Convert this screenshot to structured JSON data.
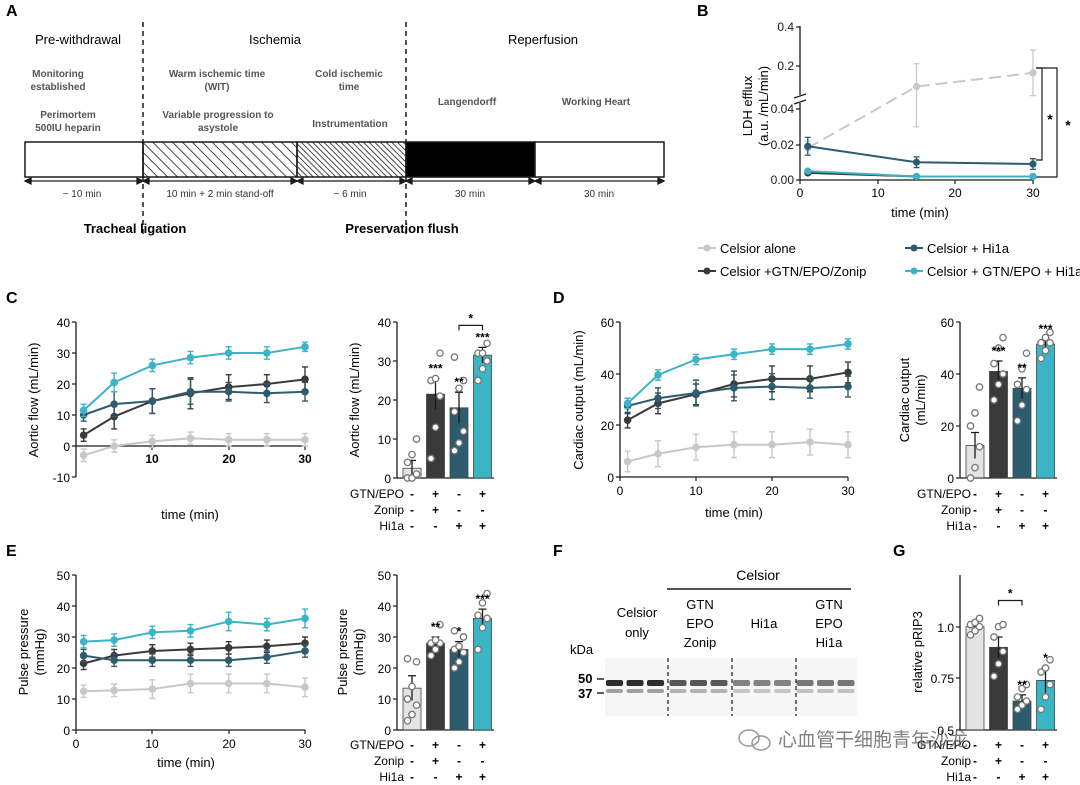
{
  "colors": {
    "celsior_alone": "#c8c8c8",
    "gtn_epo_zonip": "#3a3a3a",
    "hi1a": "#2e5b6e",
    "gtn_epo_hi1a": "#3bb5c6",
    "text": "#1a1a1a"
  },
  "panel_labels": {
    "a": "A",
    "b": "B",
    "c": "C",
    "d": "D",
    "e": "E",
    "f": "F",
    "g": "G"
  },
  "panel_a": {
    "phases": [
      "Pre-withdrawal",
      "Ischemia",
      "Reperfusion"
    ],
    "steps": {
      "monitoring": [
        "Monitoring",
        "established"
      ],
      "heparin": [
        "Perimortem",
        "500IU heparin"
      ],
      "wit": [
        "Warm ischemic time",
        "(WIT)"
      ],
      "asystole": [
        "Variable progression to",
        "asystole"
      ],
      "cold": [
        "Cold ischemic",
        "time"
      ],
      "instrumentation": "Instrumentation",
      "langendorff": "Langendorff",
      "working_heart": "Working Heart"
    },
    "durations": [
      "~ 10 min",
      "10 min + 2 min stand-off",
      "~ 6 min",
      "30 min",
      "30 min"
    ],
    "events": [
      "Tracheal ligation",
      "Preservation flush"
    ]
  },
  "legend": [
    {
      "label": "Celsior alone",
      "color_key": "celsior_alone"
    },
    {
      "label": "Celsior + Hi1a",
      "color_key": "hi1a"
    },
    {
      "label": "Celsior +GTN/EPO/Zonip",
      "color_key": "gtn_epo_zonip"
    },
    {
      "label": "Celsior + GTN/EPO + Hi1a",
      "color_key": "gtn_epo_hi1a"
    }
  ],
  "treatment_rows": {
    "labels": [
      "GTN/EPO",
      "Zonip",
      "Hi1a"
    ],
    "signs": [
      [
        "-",
        "+",
        "-",
        "+"
      ],
      [
        "-",
        "+",
        "-",
        "-"
      ],
      [
        "-",
        "-",
        "+",
        "+"
      ]
    ]
  },
  "chart_data": [
    {
      "id": "B",
      "type": "line",
      "ylabel": [
        "LDH efflux",
        "(a.u. /mL/min)"
      ],
      "xlabel": "time (min)",
      "xlim": [
        0,
        30
      ],
      "xticks": [
        0,
        10,
        20,
        30
      ],
      "ylim_lower": [
        0,
        0.04
      ],
      "ylim_upper": [
        0.04,
        0.4
      ],
      "yticks_lower": [
        "0.00",
        "0.02",
        "0.04"
      ],
      "yticks_upper": [
        "0.2",
        "0.4"
      ],
      "x": [
        1,
        15,
        30
      ],
      "series": [
        {
          "name": "Celsior alone",
          "color_key": "celsior_alone",
          "values": [
            0.018,
            0.13,
            0.19
          ],
          "err": [
            0.004,
            0.1,
            0.1
          ]
        },
        {
          "name": "Celsior + Hi1a",
          "color_key": "hi1a",
          "values": [
            0.019,
            0.01,
            0.009
          ],
          "err": [
            0.005,
            0.003,
            0.003
          ]
        },
        {
          "name": "Celsior +GTN/EPO/Zonip",
          "color_key": "gtn_epo_zonip",
          "values": [
            0.004,
            0.002,
            0.002
          ],
          "err": [
            0.001,
            0.001,
            0.001
          ]
        },
        {
          "name": "Celsior + GTN/EPO + Hi1a",
          "color_key": "gtn_epo_hi1a",
          "values": [
            0.005,
            0.002,
            0.002
          ],
          "err": [
            0.001,
            0.001,
            0.001
          ]
        }
      ],
      "annotations": [
        "*",
        "*"
      ]
    },
    {
      "id": "C_line",
      "type": "line",
      "ylabel": "Aortic flow (mL/min)",
      "xlabel": "time (min)",
      "xlim": [
        0,
        30
      ],
      "ylim": [
        -10,
        40
      ],
      "xticks": [
        10,
        20,
        30
      ],
      "yticks": [
        -10,
        0,
        10,
        20,
        30,
        40
      ],
      "x": [
        1,
        5,
        10,
        15,
        20,
        25,
        30
      ],
      "series": [
        {
          "name": "Celsior alone",
          "color_key": "celsior_alone",
          "values": [
            -3,
            0,
            1.5,
            2.5,
            2,
            2,
            2
          ],
          "err": [
            2,
            2,
            2,
            2,
            2,
            2,
            2
          ]
        },
        {
          "name": "Celsior +GTN/EPO/Zonip",
          "color_key": "gtn_epo_zonip",
          "values": [
            3.5,
            9.5,
            14.5,
            17,
            19,
            20,
            21.5
          ],
          "err": [
            2,
            4,
            4,
            5,
            4,
            3,
            4
          ]
        },
        {
          "name": "Celsior + Hi1a",
          "color_key": "hi1a",
          "values": [
            10,
            13.5,
            14.5,
            17.5,
            17.5,
            17,
            17.5
          ],
          "err": [
            2,
            4,
            4,
            4,
            3,
            3,
            3
          ]
        },
        {
          "name": "Celsior + GTN/EPO + Hi1a",
          "color_key": "gtn_epo_hi1a",
          "values": [
            11.5,
            20.5,
            26,
            28.5,
            30,
            30,
            32
          ],
          "err": [
            2,
            3,
            2,
            2,
            2,
            2,
            1.5
          ]
        }
      ]
    },
    {
      "id": "C_bar",
      "type": "bar",
      "ylabel": "Aortic flow (mL/min)",
      "ylim": [
        0,
        40
      ],
      "yticks": [
        0,
        10,
        20,
        30,
        40
      ],
      "values": [
        2.5,
        21.5,
        18,
        31.5
      ],
      "err": [
        2,
        4,
        4,
        2
      ],
      "points": [
        [
          0,
          0,
          1,
          4,
          6,
          10
        ],
        [
          5,
          13,
          21,
          25,
          25.5,
          32
        ],
        [
          7,
          9,
          12,
          17,
          23,
          25,
          31
        ],
        [
          25,
          28,
          30,
          32,
          32,
          34.5
        ]
      ],
      "sig": [
        "",
        "***",
        "**",
        "***"
      ],
      "bracket": {
        "from": 2,
        "to": 3,
        "label": "*"
      }
    },
    {
      "id": "D_line",
      "type": "line",
      "ylabel": "Cardiac output (mL/min)",
      "xlabel": "time (min)",
      "xlim": [
        0,
        30
      ],
      "ylim": [
        0,
        60
      ],
      "xticks": [
        0,
        10,
        20,
        30
      ],
      "yticks": [
        0,
        20,
        40,
        60
      ],
      "x": [
        1,
        5,
        10,
        15,
        20,
        25,
        30
      ],
      "series": [
        {
          "name": "Celsior alone",
          "color_key": "celsior_alone",
          "values": [
            6,
            9,
            11.5,
            12.5,
            12.5,
            13.5,
            12.5
          ],
          "err": [
            4,
            5,
            5,
            5,
            5,
            5,
            5
          ]
        },
        {
          "name": "Celsior +GTN/EPO/Zonip",
          "color_key": "gtn_epo_zonip",
          "values": [
            22,
            28.5,
            32,
            36,
            38,
            38,
            40.5
          ],
          "err": [
            3,
            4,
            4,
            5,
            5,
            5,
            4
          ]
        },
        {
          "name": "Celsior + Hi1a",
          "color_key": "hi1a",
          "values": [
            27.5,
            30.5,
            32.5,
            34.5,
            35,
            34.5,
            35
          ],
          "err": [
            3,
            4,
            5,
            5,
            5,
            4,
            4
          ]
        },
        {
          "name": "Celsior + GTN/EPO + Hi1a",
          "color_key": "gtn_epo_hi1a",
          "values": [
            28.5,
            39.5,
            45.5,
            47.5,
            49.5,
            49.5,
            51.5
          ],
          "err": [
            2,
            2,
            2,
            2,
            2,
            2,
            2
          ]
        }
      ]
    },
    {
      "id": "D_bar",
      "type": "bar",
      "ylabel": [
        "Cardiac output",
        "(mL/min)"
      ],
      "ylim": [
        0,
        60
      ],
      "yticks": [
        0,
        20,
        40,
        60
      ],
      "values": [
        12.5,
        41,
        34.5,
        51.5
      ],
      "err": [
        5,
        4,
        4,
        2
      ],
      "points": [
        [
          0,
          4,
          12,
          20,
          25,
          35
        ],
        [
          30,
          36,
          40,
          44,
          50,
          54
        ],
        [
          22,
          28,
          34,
          36,
          42,
          48
        ],
        [
          46,
          49,
          52,
          52,
          54,
          56
        ]
      ],
      "sig": [
        "",
        "***",
        "**",
        "***"
      ]
    },
    {
      "id": "E_line",
      "type": "line",
      "ylabel": [
        "Pulse pressure",
        "(mmHg)"
      ],
      "xlabel": "time (min)",
      "xlim": [
        0,
        30
      ],
      "ylim": [
        0,
        50
      ],
      "xticks": [
        0,
        10,
        20,
        30
      ],
      "yticks": [
        0,
        10,
        20,
        30,
        40,
        50
      ],
      "x": [
        1,
        5,
        10,
        15,
        20,
        25,
        30
      ],
      "series": [
        {
          "name": "Celsior alone",
          "color_key": "celsior_alone",
          "values": [
            12.5,
            12.8,
            13.2,
            15,
            15,
            15,
            13.8
          ],
          "err": [
            2,
            2,
            3,
            3,
            3,
            3,
            3
          ]
        },
        {
          "name": "Celsior +GTN/EPO/Zonip",
          "color_key": "gtn_epo_zonip",
          "values": [
            21.5,
            24,
            25.5,
            26,
            26.5,
            27,
            28
          ],
          "err": [
            2,
            2,
            2,
            2,
            2,
            2,
            2
          ]
        },
        {
          "name": "Celsior + Hi1a",
          "color_key": "hi1a",
          "values": [
            24,
            22.5,
            22.5,
            22.5,
            22.5,
            23.5,
            25.5
          ],
          "err": [
            2,
            2,
            2,
            2,
            2,
            2,
            2
          ]
        },
        {
          "name": "Celsior + GTN/EPO + Hi1a",
          "color_key": "gtn_epo_hi1a",
          "values": [
            28.5,
            29,
            31.5,
            32,
            35,
            34,
            36
          ],
          "err": [
            2,
            2,
            2,
            2,
            3,
            2,
            3
          ]
        }
      ]
    },
    {
      "id": "E_bar",
      "type": "bar",
      "ylabel": [
        "Pulse pressure",
        "(mmHg)"
      ],
      "ylim": [
        0,
        50
      ],
      "yticks": [
        0,
        10,
        20,
        30,
        40,
        50
      ],
      "values": [
        13.5,
        28,
        26,
        36
      ],
      "err": [
        4,
        2,
        2.5,
        3
      ],
      "points": [
        [
          3,
          5,
          8,
          10,
          14,
          22,
          23
        ],
        [
          24,
          26,
          28,
          28,
          29,
          34
        ],
        [
          20,
          22,
          25,
          26,
          27,
          30,
          32
        ],
        [
          26,
          33,
          36,
          37,
          41,
          44
        ]
      ],
      "sig": [
        "",
        "**",
        "*",
        "***"
      ]
    },
    {
      "id": "G_bar",
      "type": "bar",
      "ylabel": "relative pRIP3",
      "ylim": [
        0.5,
        1.25
      ],
      "yticks": [
        0.5,
        0.75,
        1.0
      ],
      "ytick_labels": [
        "0.5",
        "0.75",
        "1.0"
      ],
      "values": [
        1.0,
        0.9,
        0.64,
        0.74
      ],
      "err": [
        0.02,
        0.05,
        0.03,
        0.06
      ],
      "points": [
        [
          0.96,
          0.98,
          1.0,
          1.01,
          1.02,
          1.04
        ],
        [
          0.76,
          0.82,
          0.88,
          0.95,
          1.0,
          1.01
        ],
        [
          0.6,
          0.62,
          0.64,
          0.66,
          0.7,
          0.72
        ],
        [
          0.6,
          0.66,
          0.72,
          0.78,
          0.8,
          0.84
        ]
      ],
      "sig": [
        "",
        "",
        "**",
        "*"
      ],
      "bracket": {
        "from": 1,
        "to": 2,
        "label": "*"
      }
    }
  ],
  "panel_f": {
    "header": "Celsior",
    "lanes": [
      [
        "Celsior",
        "only"
      ],
      [
        "GTN",
        "EPO",
        "Zonip"
      ],
      [
        "Hi1a"
      ],
      [
        "GTN",
        "EPO",
        "Hi1a"
      ]
    ],
    "kda_label": "kDa",
    "markers": [
      "50",
      "37"
    ]
  },
  "watermark": "心血管干细胞青年沙龙"
}
